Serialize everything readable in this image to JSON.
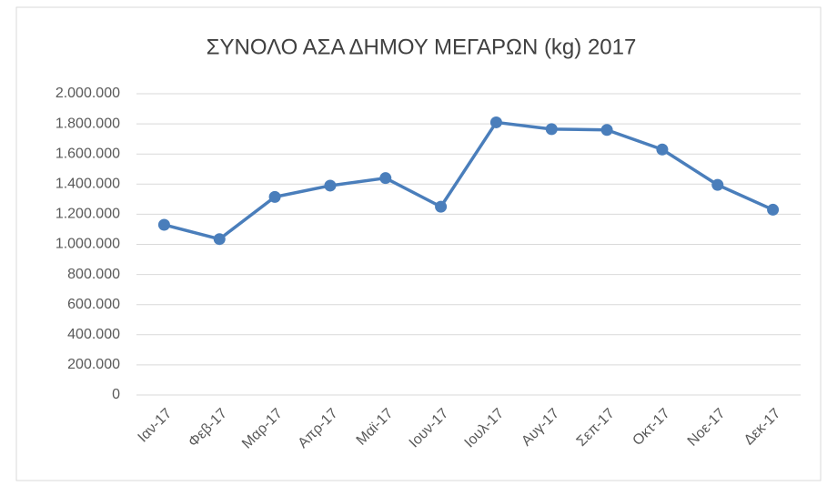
{
  "chart_data": {
    "type": "line",
    "title": "ΣΥΝΟΛΟ ΑΣΑ ΔΗΜΟΥ ΜΕΓΑΡΩΝ (kg) 2017",
    "categories": [
      "Ιαν-17",
      "Φεβ-17",
      "Μαρ-17",
      "Απρ-17",
      "Μαϊ-17",
      "Ιουν-17",
      "Ιουλ-17",
      "Αυγ-17",
      "Σεπ-17",
      "Οκτ-17",
      "Νοε-17",
      "Δεκ-17"
    ],
    "values": [
      1130000,
      1035000,
      1315000,
      1390000,
      1440000,
      1250000,
      1810000,
      1765000,
      1760000,
      1630000,
      1395000,
      1230000
    ],
    "color": "#4a7ebb",
    "ylim": [
      0,
      2000000
    ],
    "yticks": [
      0,
      {
        "value": 200000,
        "label": "200.000"
      },
      {
        "value": 400000,
        "label": "400.000"
      },
      {
        "value": 600000,
        "label": "600.000"
      },
      {
        "value": 800000,
        "label": "800.000"
      },
      {
        "value": 1000000,
        "label": "1.000.000"
      },
      {
        "value": 1200000,
        "label": "1.200.000"
      },
      {
        "value": 1400000,
        "label": "1.400.000"
      },
      {
        "value": 1600000,
        "label": "1.600.000"
      },
      {
        "value": 1800000,
        "label": "1.800.000"
      },
      {
        "value": 2000000,
        "label": "2.000.000"
      }
    ],
    "grid": true
  }
}
